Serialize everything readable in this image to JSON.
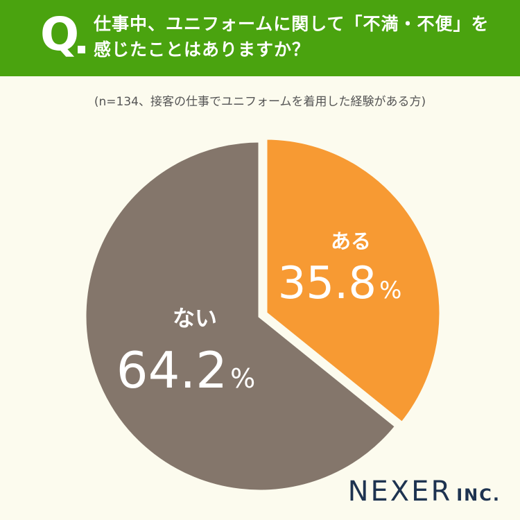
{
  "header": {
    "q_mark": "Q",
    "question_line1": "仕事中、ユニフォームに関して「不満・不便」を",
    "question_line2": "感じたことはありますか？",
    "bg_color": "#4aa30f"
  },
  "subtitle": "(n=134、接客の仕事でユニフォームを着用した経験がある方)",
  "chart_data": {
    "type": "pie",
    "categories": [
      "ある",
      "ない"
    ],
    "values": [
      35.8,
      64.2
    ],
    "unit": "%",
    "colors": [
      "#f79a33",
      "#84766b"
    ],
    "start_angle_deg": 0,
    "direction": "clockwise",
    "separator_color": "#fcfbee",
    "legend": "none"
  },
  "brand": {
    "main": "NEXER",
    "sub": "INC."
  }
}
